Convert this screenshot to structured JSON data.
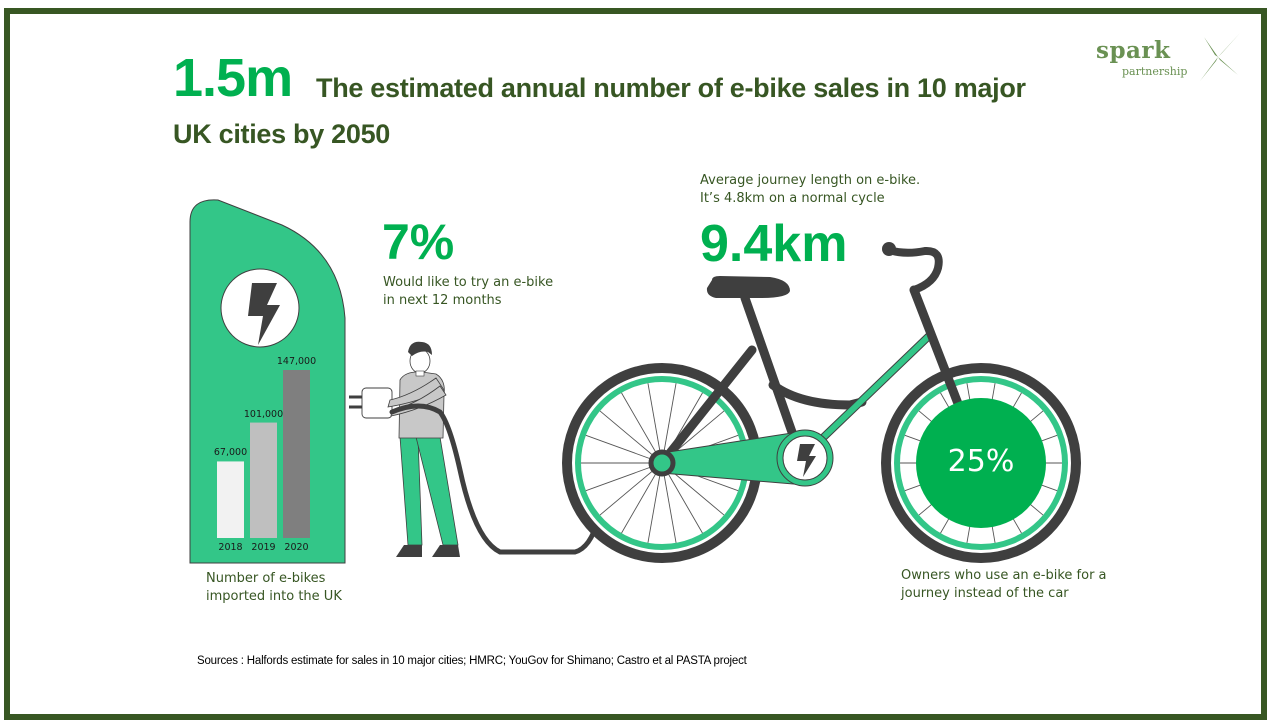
{
  "header": {
    "big_stat": "1.5m",
    "headline_line1": "The estimated annual number of e-bike sales in 10 major",
    "headline_line2": "UK cities by 2050"
  },
  "logo": {
    "word": "spark",
    "sub": "partnership"
  },
  "stat_try": {
    "value": "7%",
    "caption_line1": "Would like to try an e-bike",
    "caption_line2": "in next 12 months"
  },
  "stat_journey": {
    "caption_line1": "Average journey length on e-bike.",
    "caption_line2": "It’s 4.8km on a normal cycle",
    "value": "9.4km"
  },
  "stat_car": {
    "value": "25%",
    "caption_line1": "Owners who use an e-bike for a",
    "caption_line2": "journey instead of the car"
  },
  "imports_caption": {
    "line1": "Number of e-bikes",
    "line2": "imported into the UK"
  },
  "sources": "Sources :  Halfords estimate for sales in 10 major cities; HMRC; YouGov for Shimano; Castro et al PASTA  project",
  "colors": {
    "frame": "#385723",
    "title_green": "#00B050",
    "text_dark_green": "#375623",
    "mint": "#33C688",
    "dark": "#3F3F3F"
  },
  "icons": [
    "lightning-bolt-icon",
    "spark-star-icon"
  ],
  "chart_data": {
    "type": "bar",
    "title": "Number of e-bikes imported into the UK",
    "categories": [
      "2018",
      "2019",
      "2020"
    ],
    "values": [
      67000,
      101000,
      147000
    ],
    "value_labels": [
      "67,000",
      "101,000",
      "147,000"
    ],
    "bar_colors": [
      "#F2F2F2",
      "#BFBFBF",
      "#7F7F7F"
    ],
    "xlabel": "",
    "ylabel": "",
    "ylim": [
      0,
      147000
    ],
    "grid": false
  }
}
